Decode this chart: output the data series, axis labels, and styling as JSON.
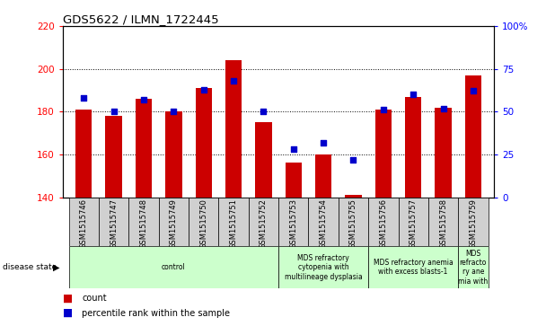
{
  "title": "GDS5622 / ILMN_1722445",
  "samples": [
    "GSM1515746",
    "GSM1515747",
    "GSM1515748",
    "GSM1515749",
    "GSM1515750",
    "GSM1515751",
    "GSM1515752",
    "GSM1515753",
    "GSM1515754",
    "GSM1515755",
    "GSM1515756",
    "GSM1515757",
    "GSM1515758",
    "GSM1515759"
  ],
  "counts": [
    181,
    178,
    186,
    180,
    191,
    204,
    175,
    156,
    160,
    141,
    181,
    187,
    182,
    197
  ],
  "percentile_ranks": [
    58,
    50,
    57,
    50,
    63,
    68,
    50,
    28,
    32,
    22,
    51,
    60,
    52,
    62
  ],
  "ylim_left": [
    140,
    220
  ],
  "ylim_right": [
    0,
    100
  ],
  "yticks_left": [
    140,
    160,
    180,
    200,
    220
  ],
  "yticks_right": [
    0,
    25,
    50,
    75,
    100
  ],
  "bar_color": "#cc0000",
  "dot_color": "#0000cc",
  "sample_box_color": "#d0d0d0",
  "disease_groups": [
    {
      "label": "control",
      "start": 0,
      "end": 6,
      "color": "#ccffcc"
    },
    {
      "label": "MDS refractory\ncytopenia with\nmultilineage dysplasia",
      "start": 7,
      "end": 9,
      "color": "#ccffcc"
    },
    {
      "label": "MDS refractory anemia\nwith excess blasts-1",
      "start": 10,
      "end": 12,
      "color": "#ccffcc"
    },
    {
      "label": "MDS\nrefracto\nry ane\nmia with",
      "start": 13,
      "end": 13,
      "color": "#ccffcc"
    }
  ],
  "count_label": "count",
  "percentile_label": "percentile rank within the sample",
  "disease_state_label": "disease state"
}
